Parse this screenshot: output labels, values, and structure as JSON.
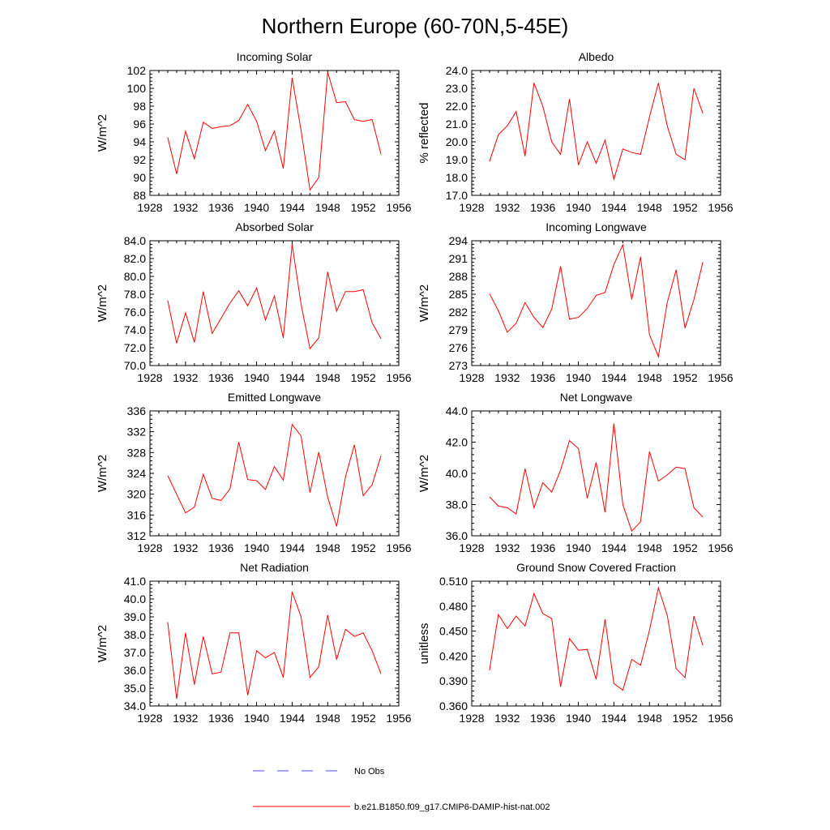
{
  "title": "Northern Europe (60-70N,5-45E)",
  "legend": {
    "placement": "bottom-center",
    "entries": [
      {
        "label": "No Obs",
        "color": "#4a4ae0",
        "style": "dashed"
      },
      {
        "label": "b.e21.B1850.f09_g17.CMIP6-DAMIP-hist-nat.002",
        "color": "#ff0000",
        "style": "solid"
      }
    ]
  },
  "chart_data": [
    {
      "type": "line",
      "title": "Incoming Solar",
      "ylabel": "W/m^2",
      "xlim": [
        1928,
        1956
      ],
      "ylim": [
        88,
        102
      ],
      "x_ticks": [
        "1928",
        "1932",
        "1936",
        "1940",
        "1944",
        "1948",
        "1952",
        "1956"
      ],
      "y_ticks": [
        "88",
        "90",
        "92",
        "94",
        "96",
        "98",
        "100",
        "102"
      ],
      "series": [
        {
          "color": "#ff0000",
          "x": [
            1930,
            1931,
            1932,
            1933,
            1934,
            1935,
            1936,
            1937,
            1938,
            1939,
            1940,
            1941,
            1942,
            1943,
            1944,
            1945,
            1946,
            1947,
            1948,
            1949,
            1950,
            1951,
            1952,
            1953,
            1954
          ],
          "y": [
            94.5,
            90.4,
            95.2,
            92.1,
            96.2,
            95.5,
            95.7,
            95.8,
            96.4,
            98.2,
            96.3,
            93.0,
            95.2,
            91.0,
            101.2,
            95.3,
            88.6,
            90.0,
            101.8,
            98.4,
            98.5,
            96.5,
            96.3,
            96.5,
            92.6
          ]
        }
      ]
    },
    {
      "type": "line",
      "title": "Albedo",
      "ylabel": "% reflected",
      "xlim": [
        1928,
        1956
      ],
      "ylim": [
        17.0,
        24.0
      ],
      "x_ticks": [
        "1928",
        "1932",
        "1936",
        "1940",
        "1944",
        "1948",
        "1952",
        "1956"
      ],
      "y_ticks": [
        "17.0",
        "18.0",
        "19.0",
        "20.0",
        "21.0",
        "22.0",
        "23.0",
        "24.0"
      ],
      "series": [
        {
          "color": "#ff0000",
          "x": [
            1930,
            1931,
            1932,
            1933,
            1934,
            1935,
            1936,
            1937,
            1938,
            1939,
            1940,
            1941,
            1942,
            1943,
            1944,
            1945,
            1946,
            1947,
            1948,
            1949,
            1950,
            1951,
            1952,
            1953,
            1954
          ],
          "y": [
            18.9,
            20.4,
            20.9,
            21.7,
            19.2,
            23.3,
            22.0,
            20.0,
            19.3,
            22.4,
            18.7,
            20.0,
            18.8,
            20.1,
            17.9,
            19.6,
            19.4,
            19.3,
            21.4,
            23.3,
            20.9,
            19.3,
            19.0,
            23.0,
            21.6
          ]
        }
      ]
    },
    {
      "type": "line",
      "title": "Absorbed Solar",
      "ylabel": "W/m^2",
      "xlim": [
        1928,
        1956
      ],
      "ylim": [
        70.0,
        84.0
      ],
      "x_ticks": [
        "1928",
        "1932",
        "1936",
        "1940",
        "1944",
        "1948",
        "1952",
        "1956"
      ],
      "y_ticks": [
        "70.0",
        "72.0",
        "74.0",
        "76.0",
        "78.0",
        "80.0",
        "82.0",
        "84.0"
      ],
      "series": [
        {
          "color": "#ff0000",
          "x": [
            1930,
            1931,
            1932,
            1933,
            1934,
            1935,
            1936,
            1937,
            1938,
            1939,
            1940,
            1941,
            1942,
            1943,
            1944,
            1945,
            1946,
            1947,
            1948,
            1949,
            1950,
            1951,
            1952,
            1953,
            1954
          ],
          "y": [
            77.3,
            72.5,
            75.9,
            72.6,
            78.3,
            73.6,
            75.3,
            77.0,
            78.4,
            76.7,
            78.7,
            75.1,
            77.8,
            73.1,
            83.6,
            76.9,
            71.9,
            73.1,
            80.5,
            76.1,
            78.3,
            78.3,
            78.5,
            74.8,
            73.0
          ]
        }
      ]
    },
    {
      "type": "line",
      "title": "Incoming Longwave",
      "ylabel": "W/m^2",
      "xlim": [
        1928,
        1956
      ],
      "ylim": [
        273,
        294
      ],
      "x_ticks": [
        "1928",
        "1932",
        "1936",
        "1940",
        "1944",
        "1948",
        "1952",
        "1956"
      ],
      "y_ticks": [
        "273",
        "276",
        "279",
        "282",
        "285",
        "288",
        "291",
        "294"
      ],
      "series": [
        {
          "color": "#ff0000",
          "x": [
            1930,
            1931,
            1932,
            1933,
            1934,
            1935,
            1936,
            1937,
            1938,
            1939,
            1940,
            1941,
            1942,
            1943,
            1944,
            1945,
            1946,
            1947,
            1948,
            1949,
            1950,
            1951,
            1952,
            1953,
            1954
          ],
          "y": [
            285.1,
            282.2,
            278.6,
            280.1,
            283.6,
            281.1,
            279.4,
            282.5,
            289.7,
            280.8,
            281.1,
            282.6,
            284.8,
            285.3,
            290.0,
            293.3,
            284.1,
            291.3,
            278.2,
            274.5,
            283.6,
            289.1,
            279.3,
            284.1,
            290.4
          ]
        }
      ]
    },
    {
      "type": "line",
      "title": "Emitted Longwave",
      "ylabel": "W/m^2",
      "xlim": [
        1928,
        1956
      ],
      "ylim": [
        312,
        336
      ],
      "x_ticks": [
        "1928",
        "1932",
        "1936",
        "1940",
        "1944",
        "1948",
        "1952",
        "1956"
      ],
      "y_ticks": [
        "312",
        "316",
        "320",
        "324",
        "328",
        "332",
        "336"
      ],
      "series": [
        {
          "color": "#ff0000",
          "x": [
            1930,
            1931,
            1932,
            1933,
            1934,
            1935,
            1936,
            1937,
            1938,
            1939,
            1940,
            1941,
            1942,
            1943,
            1944,
            1945,
            1946,
            1947,
            1948,
            1949,
            1950,
            1951,
            1952,
            1953,
            1954
          ],
          "y": [
            323.6,
            320.0,
            316.4,
            317.5,
            323.8,
            319.2,
            318.8,
            321.0,
            330.0,
            322.8,
            322.6,
            320.9,
            325.3,
            322.7,
            333.4,
            331.2,
            320.3,
            328.1,
            319.4,
            313.8,
            323.3,
            329.5,
            319.7,
            321.8,
            327.4
          ]
        }
      ]
    },
    {
      "type": "line",
      "title": "Net Longwave",
      "ylabel": "W/m^2",
      "xlim": [
        1928,
        1956
      ],
      "ylim": [
        36.0,
        44.0
      ],
      "x_ticks": [
        "1928",
        "1932",
        "1936",
        "1940",
        "1944",
        "1948",
        "1952",
        "1956"
      ],
      "y_ticks": [
        "36.0",
        "38.0",
        "40.0",
        "42.0",
        "44.0"
      ],
      "series": [
        {
          "color": "#ff0000",
          "x": [
            1930,
            1931,
            1932,
            1933,
            1934,
            1935,
            1936,
            1937,
            1938,
            1939,
            1940,
            1941,
            1942,
            1943,
            1944,
            1945,
            1946,
            1947,
            1948,
            1949,
            1950,
            1951,
            1952,
            1953,
            1954
          ],
          "y": [
            38.5,
            37.9,
            37.8,
            37.4,
            40.3,
            37.8,
            39.4,
            38.8,
            40.2,
            42.1,
            41.6,
            38.4,
            40.7,
            37.5,
            43.2,
            38.0,
            36.3,
            36.9,
            41.4,
            39.5,
            39.9,
            40.4,
            40.3,
            37.8,
            37.2
          ]
        }
      ]
    },
    {
      "type": "line",
      "title": "Net Radiation",
      "ylabel": "W/m^2",
      "xlim": [
        1928,
        1956
      ],
      "ylim": [
        34.0,
        41.0
      ],
      "x_ticks": [
        "1928",
        "1932",
        "1936",
        "1940",
        "1944",
        "1948",
        "1952",
        "1956"
      ],
      "y_ticks": [
        "34.0",
        "35.0",
        "36.0",
        "37.0",
        "38.0",
        "39.0",
        "40.0",
        "41.0"
      ],
      "series": [
        {
          "color": "#ff0000",
          "x": [
            1930,
            1931,
            1932,
            1933,
            1934,
            1935,
            1936,
            1937,
            1938,
            1939,
            1940,
            1941,
            1942,
            1943,
            1944,
            1945,
            1946,
            1947,
            1948,
            1949,
            1950,
            1951,
            1952,
            1953,
            1954
          ],
          "y": [
            38.7,
            34.4,
            38.1,
            35.2,
            37.9,
            35.8,
            35.9,
            38.1,
            38.1,
            34.6,
            37.1,
            36.7,
            37.0,
            35.6,
            40.4,
            39.0,
            35.6,
            36.2,
            39.1,
            36.6,
            38.3,
            37.9,
            38.1,
            37.1,
            35.8
          ]
        }
      ]
    },
    {
      "type": "line",
      "title": "Ground Snow Covered Fraction",
      "ylabel": "unitless",
      "xlim": [
        1928,
        1956
      ],
      "ylim": [
        0.36,
        0.51
      ],
      "x_ticks": [
        "1928",
        "1932",
        "1936",
        "1940",
        "1944",
        "1948",
        "1952",
        "1956"
      ],
      "y_ticks": [
        "0.360",
        "0.390",
        "0.420",
        "0.450",
        "0.480",
        "0.510"
      ],
      "series": [
        {
          "color": "#ff0000",
          "x": [
            1930,
            1931,
            1932,
            1933,
            1934,
            1935,
            1936,
            1937,
            1938,
            1939,
            1940,
            1941,
            1942,
            1943,
            1944,
            1945,
            1946,
            1947,
            1948,
            1949,
            1950,
            1951,
            1952,
            1953,
            1954
          ],
          "y": [
            0.403,
            0.47,
            0.453,
            0.468,
            0.456,
            0.495,
            0.471,
            0.465,
            0.383,
            0.441,
            0.427,
            0.428,
            0.392,
            0.464,
            0.387,
            0.379,
            0.416,
            0.409,
            0.451,
            0.502,
            0.469,
            0.405,
            0.394,
            0.468,
            0.433
          ]
        }
      ]
    }
  ]
}
